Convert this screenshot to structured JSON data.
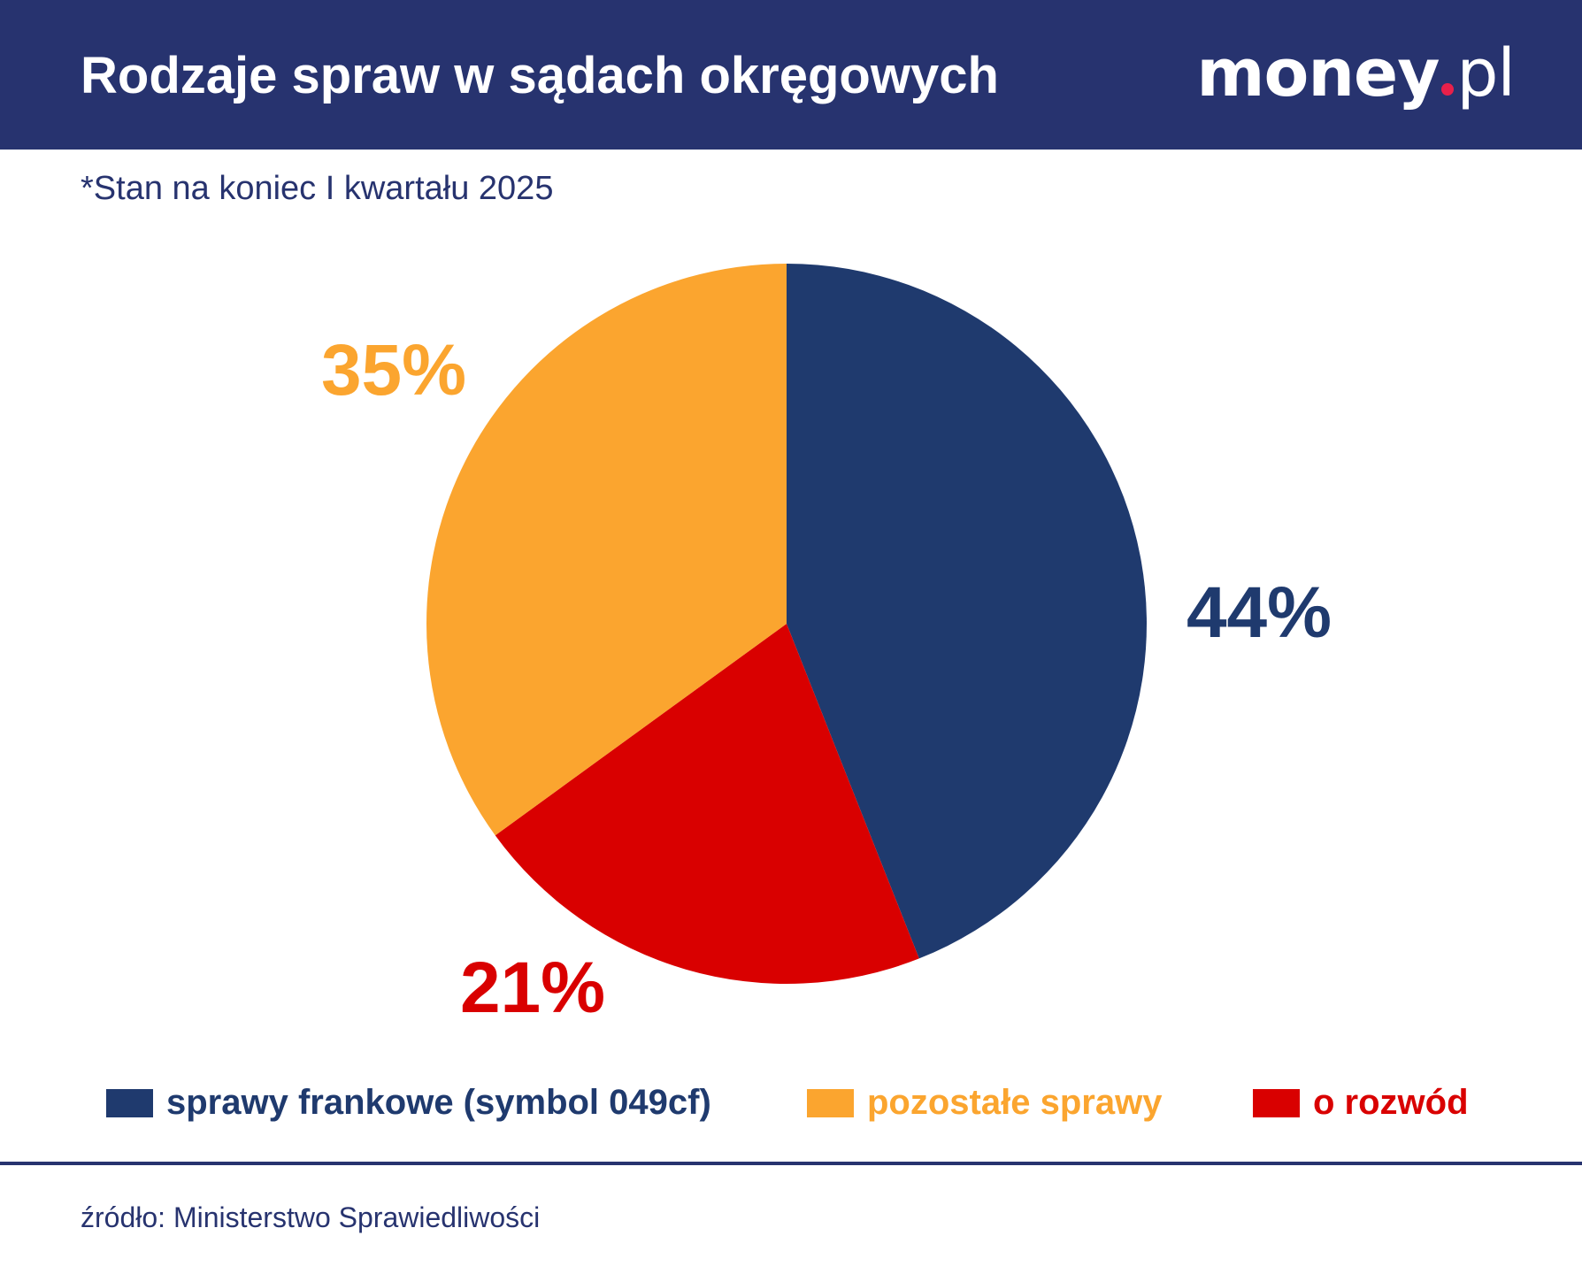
{
  "header": {
    "title": "Rodzaje spraw w sądach okręgowych",
    "logo": {
      "brand": "money",
      "tld": "pl"
    }
  },
  "subtitle": "*Stan na koniec I kwartału 2025",
  "source": "źródło: Ministerstwo Sprawiedliwości",
  "colors": {
    "header": "#27336f",
    "navy": "#1f3a6e",
    "orange": "#fba52f",
    "red": "#d90000"
  },
  "chart_data": {
    "type": "pie",
    "title": "Rodzaje spraw w sądach okręgowych",
    "legend_position": "bottom",
    "slices": [
      {
        "name": "sprawy frankowe (symbol 049cf)",
        "value": 44,
        "label": "44%",
        "color": "#1f3a6e"
      },
      {
        "name": "o rozwód",
        "value": 21,
        "label": "21%",
        "color": "#d90000"
      },
      {
        "name": "pozostałe sprawy",
        "value": 35,
        "label": "35%",
        "color": "#fba52f"
      }
    ]
  }
}
